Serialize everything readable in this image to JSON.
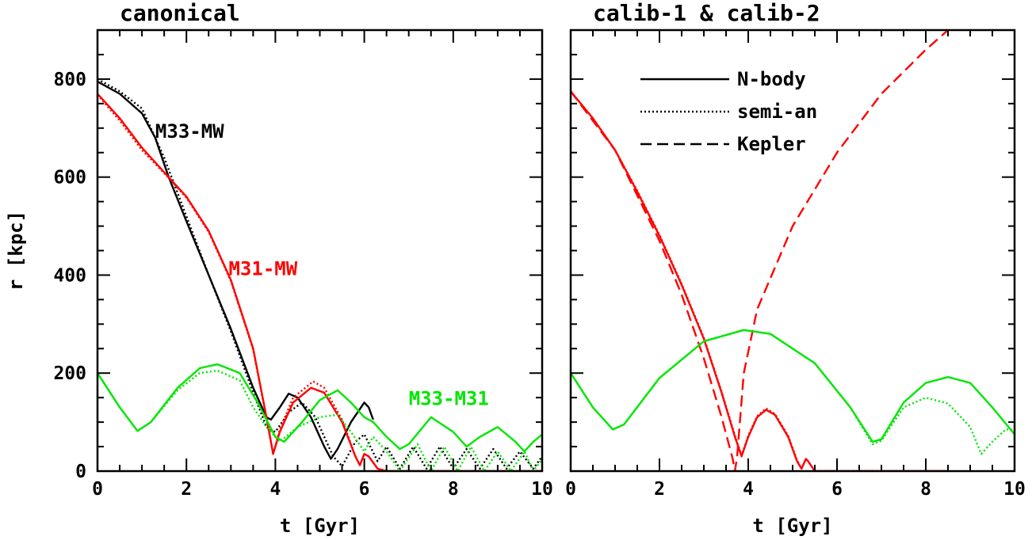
{
  "colors": {
    "black": "#000000",
    "red": "#ff0000",
    "green": "#00e600"
  },
  "chart_data": [
    {
      "type": "line",
      "title": "canonical",
      "xlabel": "t [Gyr]",
      "ylabel": "r [kpc]",
      "xlim": [
        0,
        10
      ],
      "ylim": [
        0,
        900
      ],
      "xticks": [
        0,
        2,
        4,
        6,
        8,
        10
      ],
      "yticks": [
        0,
        200,
        400,
        600,
        800
      ],
      "annotations": [
        {
          "text": "M33-MW",
          "color": "black",
          "t": 1.3,
          "r": 680
        },
        {
          "text": "M31-MW",
          "color": "red",
          "t": 2.95,
          "r": 400
        },
        {
          "text": "M33-M31",
          "color": "green",
          "t": 7,
          "r": 135
        }
      ],
      "series": [
        {
          "pair": "M33-MW",
          "style": "solid",
          "color": "black",
          "t": [
            0,
            0.5,
            1,
            1.3,
            1.6,
            2,
            2.5,
            3,
            3.5,
            3.8,
            3.9,
            4.1,
            4.3,
            4.5,
            4.8,
            5.1,
            5.25,
            5.4,
            5.7,
            6,
            6.1,
            6.2
          ],
          "r": [
            795,
            770,
            730,
            680,
            600,
            510,
            400,
            290,
            170,
            110,
            105,
            130,
            158,
            150,
            110,
            50,
            25,
            45,
            100,
            140,
            130,
            105
          ]
        },
        {
          "pair": "M33-MW",
          "style": "dotted",
          "color": "black",
          "t": [
            0,
            0.5,
            1,
            1.5,
            2,
            2.5,
            3,
            3.5,
            3.8,
            4,
            4.3,
            4.6,
            4.9,
            5.3,
            5.5,
            5.8,
            6,
            6.3,
            6.5,
            6.8,
            7.1,
            7.4,
            7.7,
            8,
            8.3,
            8.6,
            8.9,
            9.2,
            9.5,
            9.8,
            10
          ],
          "r": [
            800,
            775,
            740,
            640,
            520,
            400,
            285,
            160,
            90,
            80,
            120,
            140,
            110,
            30,
            10,
            60,
            75,
            20,
            50,
            5,
            50,
            5,
            50,
            5,
            45,
            5,
            45,
            5,
            40,
            5,
            30
          ]
        },
        {
          "pair": "M31-MW",
          "style": "solid",
          "color": "red",
          "t": [
            0,
            0.5,
            1,
            1.5,
            2,
            2.5,
            3,
            3.5,
            3.8,
            3.95,
            4.1,
            4.4,
            4.8,
            5.1,
            5.5,
            5.8,
            5.9,
            6,
            6.1,
            6.3,
            6.5,
            10
          ],
          "r": [
            770,
            720,
            660,
            610,
            560,
            490,
            390,
            250,
            110,
            35,
            80,
            140,
            170,
            160,
            100,
            30,
            12,
            35,
            30,
            5,
            0,
            0
          ]
        },
        {
          "pair": "M31-MW",
          "style": "dotted",
          "color": "red",
          "t": [
            0,
            0.5,
            1,
            1.5,
            2,
            2.5,
            3,
            3.5,
            3.8,
            3.95,
            4.1,
            4.4,
            4.85,
            5.1,
            5.5,
            5.8,
            5.9,
            6,
            6.1,
            6.3,
            6.5,
            10
          ],
          "r": [
            768,
            715,
            655,
            608,
            558,
            488,
            388,
            248,
            108,
            35,
            85,
            150,
            183,
            170,
            105,
            30,
            12,
            35,
            30,
            5,
            0,
            0
          ]
        },
        {
          "pair": "M33-M31",
          "style": "solid",
          "color": "green",
          "t": [
            0,
            0.5,
            0.9,
            1.2,
            1.8,
            2.3,
            2.7,
            3.2,
            3.6,
            4,
            4.2,
            4.6,
            5,
            5.4,
            5.7,
            6,
            6.2,
            6.5,
            6.8,
            7,
            7.5,
            8,
            8.3,
            8.6,
            9,
            9.4,
            9.6,
            9.8,
            10
          ],
          "r": [
            200,
            130,
            82,
            100,
            170,
            210,
            218,
            200,
            140,
            70,
            60,
            100,
            145,
            165,
            140,
            110,
            100,
            70,
            45,
            55,
            110,
            80,
            50,
            70,
            90,
            60,
            40,
            60,
            75
          ]
        },
        {
          "pair": "M33-M31",
          "style": "dotted",
          "color": "green",
          "t": [
            0,
            0.5,
            0.9,
            1.2,
            1.8,
            2.3,
            2.7,
            3.2,
            3.5,
            3.8,
            4.1,
            4.5,
            5,
            5.4,
            5.7,
            6,
            6.2,
            6.5,
            6.8,
            7.2,
            7.5,
            7.8,
            8.1,
            8.4,
            8.7,
            9,
            9.3,
            9.6,
            9.8,
            10
          ],
          "r": [
            200,
            130,
            82,
            100,
            165,
            200,
            205,
            185,
            130,
            90,
            60,
            90,
            110,
            115,
            80,
            40,
            70,
            40,
            0,
            55,
            0,
            50,
            0,
            50,
            0,
            40,
            0,
            40,
            0,
            25
          ]
        }
      ]
    },
    {
      "type": "line",
      "title": "calib-1 & calib-2",
      "xlabel": "t [Gyr]",
      "xlim": [
        0,
        10
      ],
      "ylim": [
        0,
        900
      ],
      "xticks": [
        0,
        2,
        4,
        6,
        8,
        10
      ],
      "legend": {
        "placement": "top-center",
        "entries": [
          {
            "label": "N-body",
            "style": "solid"
          },
          {
            "label": "semi-an",
            "style": "dotted"
          },
          {
            "label": "Kepler",
            "style": "dashed"
          }
        ]
      },
      "series": [
        {
          "style": "solid",
          "color": "red",
          "t": [
            0,
            0.5,
            1,
            1.5,
            2,
            2.5,
            3,
            3.4,
            3.7,
            3.85,
            4,
            4.2,
            4.4,
            4.6,
            4.9,
            5.1,
            5.2,
            5.3,
            5.35,
            5.5,
            8.5
          ],
          "r": [
            775,
            720,
            655,
            570,
            480,
            380,
            270,
            160,
            70,
            30,
            70,
            110,
            125,
            115,
            70,
            20,
            5,
            25,
            20,
            0,
            0
          ]
        },
        {
          "style": "dotted",
          "color": "red",
          "t": [
            0,
            0.5,
            1,
            1.5,
            2,
            2.5,
            3,
            3.4,
            3.7,
            3.85,
            4,
            4.2,
            4.4,
            4.6,
            4.9,
            5.1,
            5.2,
            5.3,
            5.35,
            5.5,
            8.5
          ],
          "r": [
            775,
            720,
            655,
            572,
            482,
            382,
            272,
            162,
            72,
            32,
            72,
            112,
            128,
            117,
            72,
            22,
            5,
            25,
            20,
            0,
            0
          ]
        },
        {
          "style": "dashed",
          "color": "red",
          "t": [
            0,
            1,
            2,
            2.5,
            3,
            3.4,
            3.65,
            3.7,
            3.75,
            3.9,
            4.2,
            5,
            6,
            7,
            8,
            8.5
          ],
          "r": [
            775,
            655,
            470,
            360,
            230,
            110,
            25,
            0,
            30,
            200,
            330,
            500,
            650,
            770,
            860,
            900
          ]
        },
        {
          "style": "solid",
          "color": "green",
          "t": [
            0,
            0.5,
            0.95,
            1.2,
            2,
            3,
            3.9,
            4.5,
            5.5,
            6.3,
            6.8,
            7,
            7.5,
            8,
            8.5,
            9,
            9.5,
            10
          ],
          "r": [
            200,
            130,
            85,
            95,
            190,
            265,
            288,
            280,
            220,
            130,
            60,
            65,
            140,
            180,
            192,
            180,
            130,
            75
          ]
        },
        {
          "style": "dotted",
          "color": "green",
          "t": [
            0,
            0.5,
            0.95,
            1.2,
            2,
            3,
            3.9,
            4.5,
            5.5,
            6.3,
            6.8,
            7,
            7.5,
            8,
            8.5,
            9,
            9.25,
            9.5,
            9.8,
            10
          ],
          "r": [
            200,
            130,
            85,
            95,
            190,
            265,
            288,
            280,
            220,
            130,
            55,
            62,
            130,
            150,
            138,
            90,
            35,
            60,
            85,
            85
          ]
        }
      ]
    }
  ]
}
